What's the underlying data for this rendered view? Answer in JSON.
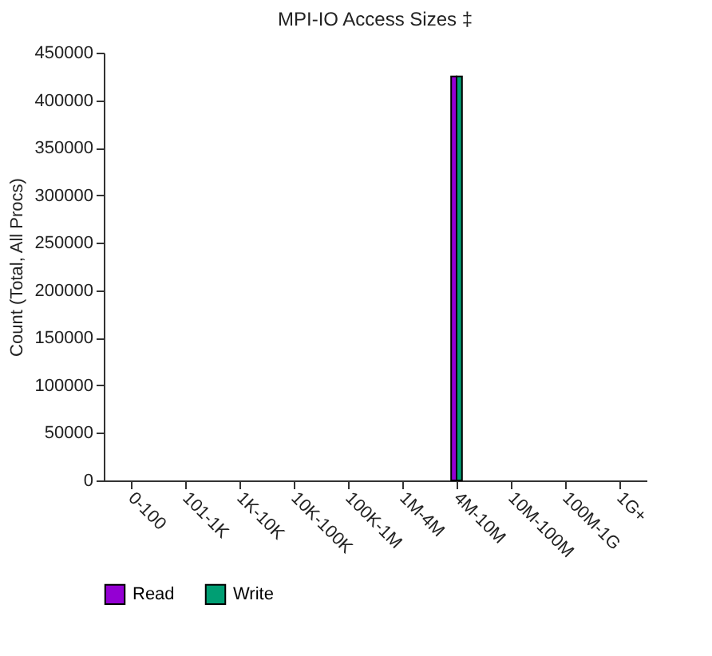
{
  "chart_data": {
    "type": "bar",
    "title": "MPI-IO Access Sizes ‡",
    "ylabel": "Count (Total, All Procs)",
    "categories": [
      "0-100",
      "101-1K",
      "1K-10K",
      "10K-100K",
      "100K-1M",
      "1M-4M",
      "4M-10M",
      "10M-100M",
      "100M-1G",
      "1G+"
    ],
    "series": [
      {
        "name": "Read",
        "color": "#9400d3",
        "values": [
          0,
          0,
          0,
          0,
          0,
          0,
          425000,
          0,
          0,
          0
        ]
      },
      {
        "name": "Write",
        "color": "#009e73",
        "values": [
          0,
          0,
          0,
          0,
          0,
          0,
          425000,
          0,
          0,
          0
        ]
      }
    ],
    "ylim": [
      0,
      450000
    ],
    "yticks": [
      0,
      50000,
      100000,
      150000,
      200000,
      250000,
      300000,
      350000,
      400000,
      450000
    ],
    "grid": false,
    "legend": "bottom"
  }
}
